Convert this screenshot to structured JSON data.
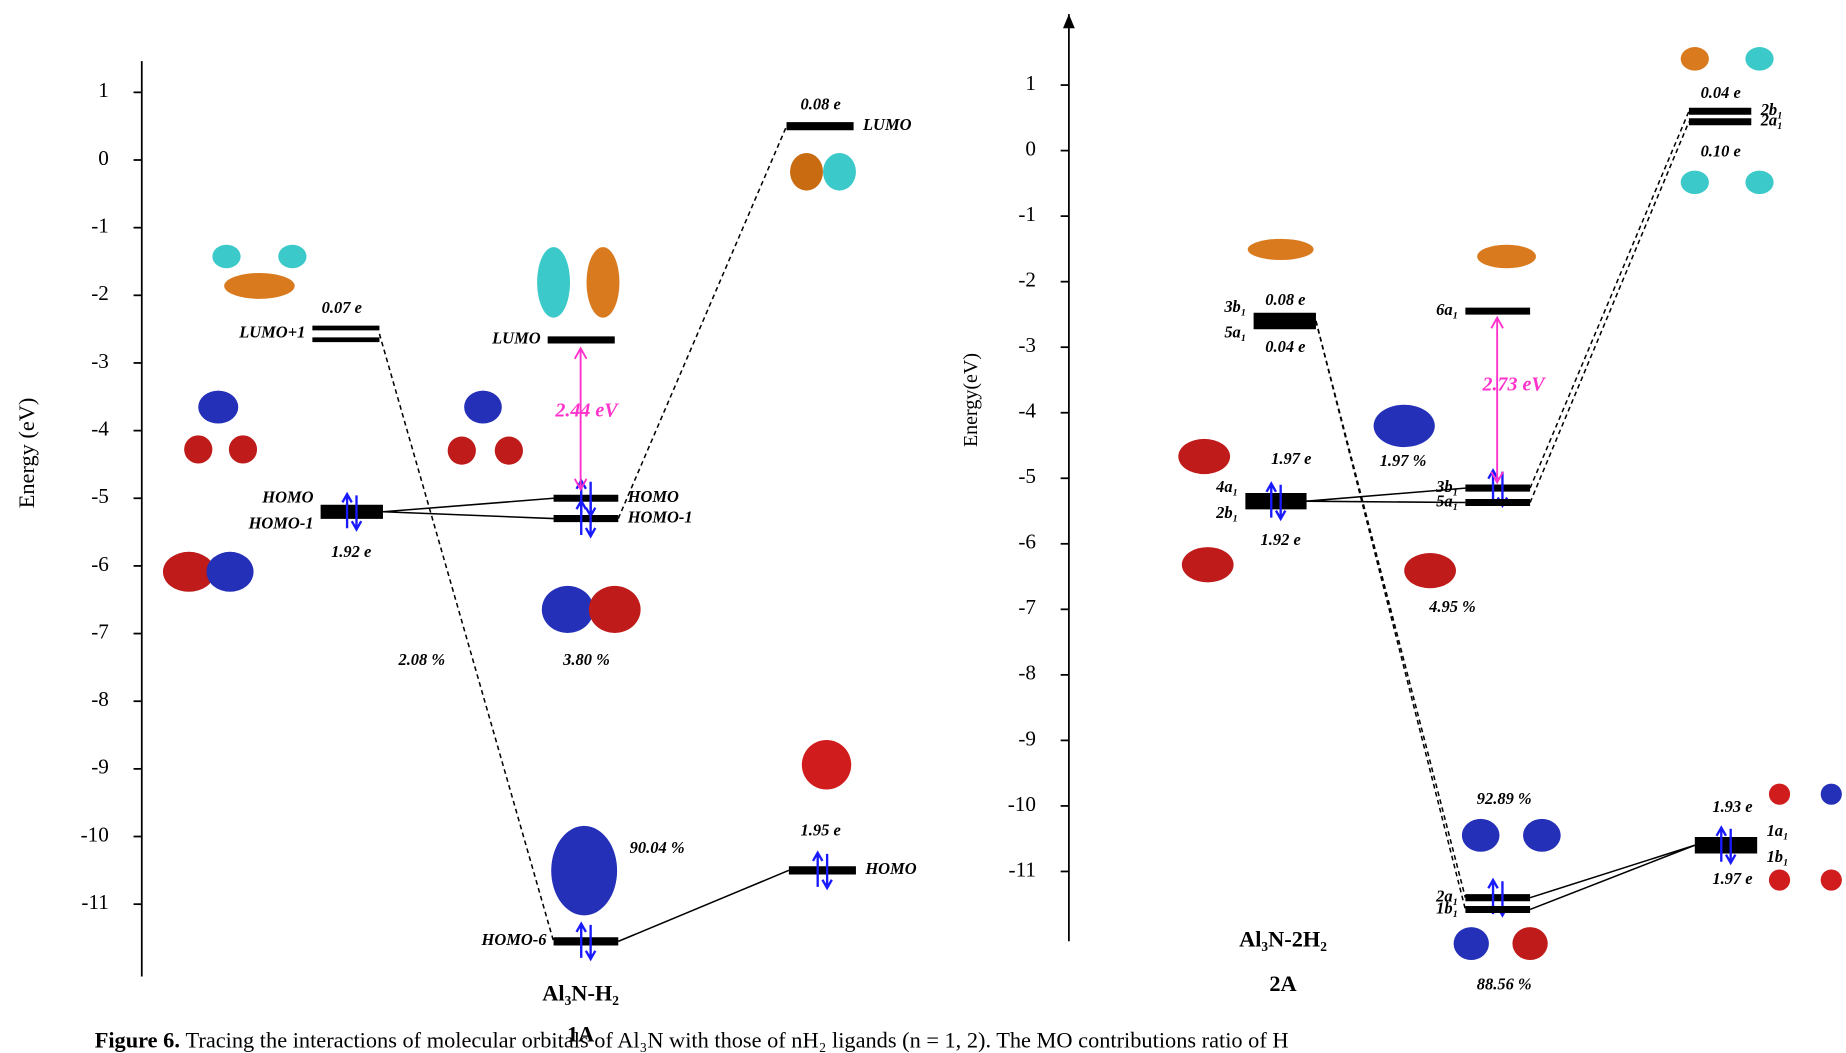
{
  "panels": [
    {
      "title": "Al₃N-H₂",
      "subtitle": "1A",
      "y_axis_label": "Energy (eV)",
      "yticks": [
        1,
        0,
        -1,
        -2,
        -3,
        -4,
        -5,
        -6,
        -7,
        -8,
        -9,
        -10,
        -11
      ],
      "levels": [
        {
          "energy": -2.57,
          "labels": [
            "LUMO+1"
          ]
        },
        {
          "energy": -5.2,
          "labels": [
            "HOMO",
            "HOMO-1"
          ]
        },
        {
          "energy": -2.66,
          "labels": [
            "LUMO"
          ]
        },
        {
          "energy": -5.0,
          "labels": [
            "HOMO"
          ]
        },
        {
          "energy": -5.3,
          "labels": [
            "HOMO-1"
          ]
        },
        {
          "energy": -11.55,
          "labels": [
            "HOMO-6"
          ]
        },
        {
          "energy": 0.5,
          "labels": [
            "LUMO"
          ]
        },
        {
          "energy": -10.5,
          "labels": [
            "HOMO"
          ]
        }
      ],
      "annotations": [
        "0.07 e",
        "1.92 e",
        "0.08 e",
        "1.95 e",
        "2.08 %",
        "3.80 %",
        "90.04 %",
        "2.44 eV"
      ]
    },
    {
      "title": "Al₃N-2H₂",
      "subtitle": "2A",
      "y_axis_label": "Energy(eV)",
      "yticks": [
        1,
        0,
        -1,
        -2,
        -3,
        -4,
        -5,
        -6,
        -7,
        -8,
        -9,
        -10,
        -11
      ],
      "levels": [
        {
          "energy": -2.6,
          "labels": [
            "3b₁",
            "5a₁"
          ]
        },
        {
          "energy": -5.35,
          "labels": [
            "4a₁",
            "2b₁"
          ]
        },
        {
          "energy": -2.45,
          "labels": [
            "6a₁"
          ]
        },
        {
          "energy": -5.15,
          "labels": [
            "3b₁"
          ]
        },
        {
          "energy": -5.37,
          "labels": [
            "5a₁"
          ]
        },
        {
          "energy": -11.4,
          "labels": [
            "2a₁"
          ]
        },
        {
          "energy": -11.58,
          "labels": [
            "1b₁"
          ]
        },
        {
          "energy": 0.6,
          "labels": [
            "2b₁"
          ]
        },
        {
          "energy": 0.44,
          "labels": [
            "2a₁"
          ]
        },
        {
          "energy": -10.6,
          "labels": [
            "1a₁",
            "1b₁"
          ]
        }
      ],
      "annotations": [
        "0.08 e",
        "0.04 e",
        "1.97 e",
        "1.92 e",
        "1.97 %",
        "4.95 %",
        "2.73 eV",
        "92.89 %",
        "88.56 %",
        "0.04 e",
        "0.10 e",
        "1.93 e",
        "1.97 e"
      ]
    }
  ],
  "caption": {
    "label": "Figure 6.",
    "text": "Tracing the interactions of molecular orbitals of Al₃N with those of nH₂ ligands (n = 1, 2). The MO contributions ratio of H"
  }
}
